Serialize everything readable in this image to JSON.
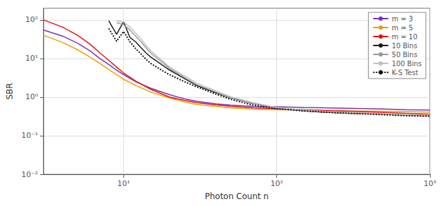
{
  "chart_data": {
    "type": "line",
    "xlabel": "Photon Count n",
    "ylabel": "SBR",
    "log": true,
    "xlim": [
      3,
      1000
    ],
    "ylim": [
      0.01,
      200
    ],
    "xticks": [
      {
        "value": 10,
        "label": "10¹"
      },
      {
        "value": 100,
        "label": "10²"
      },
      {
        "value": 1000,
        "label": "10³"
      }
    ],
    "yticks": [
      {
        "value": 0.01,
        "label": "10⁻²"
      },
      {
        "value": 0.1,
        "label": "10⁻¹"
      },
      {
        "value": 1,
        "label": "10⁰"
      },
      {
        "value": 10,
        "label": "10¹"
      },
      {
        "value": 100,
        "label": "10²"
      }
    ],
    "grid": true,
    "legend": "upper right",
    "series": [
      {
        "name": "m = 3",
        "color": "#7b2fbe",
        "line_style": "solid",
        "x": [
          3,
          4,
          5,
          6,
          7,
          8,
          9,
          10,
          12,
          15,
          20,
          25,
          30,
          40,
          50,
          70,
          100,
          150,
          200,
          300,
          500,
          700,
          1000
        ],
        "values": [
          55,
          38,
          25,
          16,
          10,
          7.0,
          5.0,
          3.8,
          2.5,
          1.7,
          1.15,
          0.9,
          0.78,
          0.67,
          0.62,
          0.57,
          0.56,
          0.54,
          0.53,
          0.51,
          0.49,
          0.47,
          0.46
        ]
      },
      {
        "name": "m = 5",
        "color": "#e8a000",
        "line_style": "solid",
        "x": [
          3,
          4,
          5,
          6,
          7,
          8,
          9,
          10,
          12,
          15,
          20,
          25,
          30,
          40,
          50,
          70,
          100,
          150,
          200,
          300,
          500,
          700,
          1000
        ],
        "values": [
          40,
          26,
          17,
          11,
          7.5,
          5.2,
          3.8,
          2.9,
          2.0,
          1.35,
          0.95,
          0.75,
          0.65,
          0.57,
          0.53,
          0.49,
          0.47,
          0.46,
          0.45,
          0.44,
          0.43,
          0.42,
          0.41
        ]
      },
      {
        "name": "m = 10",
        "color": "#e81010",
        "line_style": "solid",
        "x": [
          3,
          4,
          5,
          6,
          7,
          8,
          9,
          10,
          12,
          15,
          20,
          25,
          30,
          40,
          50,
          70,
          100,
          150,
          200,
          300,
          500,
          700,
          1000
        ],
        "values": [
          100,
          65,
          40,
          24,
          14,
          9.0,
          6.0,
          4.2,
          2.6,
          1.6,
          1.0,
          0.82,
          0.72,
          0.63,
          0.58,
          0.53,
          0.5,
          0.47,
          0.45,
          0.43,
          0.4,
          0.38,
          0.36
        ]
      },
      {
        "name": "10 Bins",
        "color": "#1a1a1a",
        "line_style": "solid",
        "x": [
          8,
          9,
          10,
          11,
          12,
          13,
          14,
          15,
          20,
          25,
          30,
          40,
          50,
          70,
          100,
          150,
          200,
          300,
          500,
          700,
          1000
        ],
        "values": [
          95,
          42,
          90,
          35,
          27,
          19,
          14,
          11,
          5.0,
          3.0,
          2.0,
          1.3,
          0.95,
          0.68,
          0.52,
          0.44,
          0.41,
          0.38,
          0.36,
          0.34,
          0.33
        ]
      },
      {
        "name": "50 Bins",
        "color": "#999999",
        "line_style": "solid",
        "x": [
          9,
          10,
          11,
          12,
          13,
          14,
          15,
          20,
          25,
          30,
          40,
          50,
          70,
          100,
          150,
          200,
          300,
          500,
          700,
          1000
        ],
        "values": [
          85,
          75,
          55,
          38,
          27,
          19,
          14,
          5.5,
          3.2,
          2.1,
          1.35,
          0.95,
          0.68,
          0.52,
          0.44,
          0.41,
          0.38,
          0.36,
          0.34,
          0.33
        ]
      },
      {
        "name": "100 Bins",
        "color": "#c0c0c0",
        "line_style": "solid",
        "x": [
          9,
          10,
          11,
          12,
          13,
          14,
          15,
          20,
          25,
          30,
          40,
          50,
          70,
          100,
          150,
          200,
          300,
          500,
          700,
          1000
        ],
        "values": [
          95,
          88,
          65,
          45,
          32,
          22,
          16,
          6.0,
          3.5,
          2.3,
          1.45,
          1.02,
          0.72,
          0.54,
          0.46,
          0.43,
          0.4,
          0.37,
          0.35,
          0.34
        ]
      },
      {
        "name": "K-S Test",
        "color": "#111111",
        "line_style": "dotted",
        "x": [
          8,
          9,
          10,
          11,
          12,
          13,
          14,
          15,
          18,
          20,
          25,
          30,
          40,
          50,
          60,
          70,
          100,
          150,
          200,
          300,
          500,
          700,
          1000
        ],
        "values": [
          60,
          28,
          50,
          27,
          18,
          13,
          9.5,
          7.5,
          4.8,
          3.8,
          2.5,
          1.85,
          1.2,
          0.88,
          0.72,
          0.62,
          0.5,
          0.44,
          0.41,
          0.38,
          0.35,
          0.33,
          0.32
        ]
      }
    ]
  }
}
